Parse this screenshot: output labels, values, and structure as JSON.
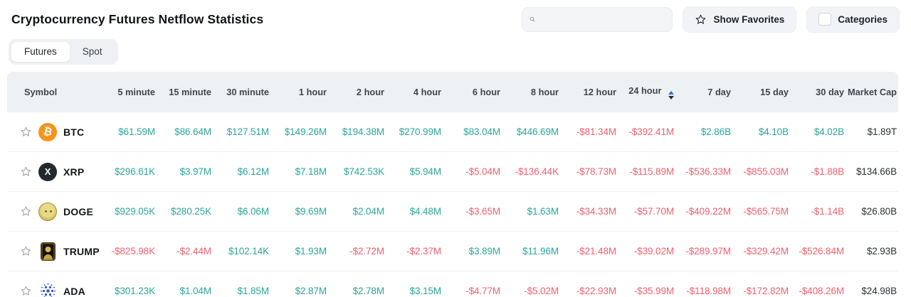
{
  "header": {
    "title": "Cryptocurrency Futures Netflow Statistics",
    "show_favorites_label": "Show Favorites",
    "categories_label": "Categories"
  },
  "search": {
    "value": "",
    "placeholder": ""
  },
  "tabs": [
    {
      "label": "Futures",
      "active": true
    },
    {
      "label": "Spot",
      "active": false
    }
  ],
  "table": {
    "columns": [
      "Symbol",
      "5 minute",
      "15 minute",
      "30 minute",
      "1 hour",
      "2 hour",
      "4 hour",
      "6 hour",
      "8 hour",
      "12 hour",
      "24 hour",
      "7 day",
      "15 day",
      "30 day",
      "Market Cap"
    ],
    "sorted_column": "24 hour",
    "rows": [
      {
        "symbol": "BTC",
        "icon": "btc-icon",
        "values": [
          "$61.59M",
          "$86.64M",
          "$127.51M",
          "$149.26M",
          "$194.38M",
          "$270.99M",
          "$83.04M",
          "$446.69M",
          "-$81.34M",
          "-$392.41M",
          "$2.86B",
          "$4.10B",
          "$4.02B"
        ],
        "market_cap": "$1.89T"
      },
      {
        "symbol": "XRP",
        "icon": "xrp-icon",
        "values": [
          "$296.61K",
          "$3.97M",
          "$6.12M",
          "$7.18M",
          "$742.53K",
          "$5.94M",
          "-$5.04M",
          "-$136.44K",
          "-$78.73M",
          "-$115.89M",
          "-$536.33M",
          "-$855.03M",
          "-$1.88B"
        ],
        "market_cap": "$134.66B"
      },
      {
        "symbol": "DOGE",
        "icon": "doge-icon",
        "values": [
          "$929.05K",
          "$280.25K",
          "$6.06M",
          "$9.69M",
          "$2.04M",
          "$4.48M",
          "-$3.65M",
          "$1.63M",
          "-$34.33M",
          "-$57.70M",
          "-$409.22M",
          "-$565.75M",
          "-$1.14B"
        ],
        "market_cap": "$26.80B"
      },
      {
        "symbol": "TRUMP",
        "icon": "trump-icon",
        "values": [
          "-$825.98K",
          "-$2.44M",
          "$102.14K",
          "$1.93M",
          "-$2.72M",
          "-$2.37M",
          "$3.89M",
          "$11.96M",
          "-$21.48M",
          "-$39.02M",
          "-$289.97M",
          "-$329.42M",
          "-$526.84M"
        ],
        "market_cap": "$2.93B"
      },
      {
        "symbol": "ADA",
        "icon": "ada-icon",
        "values": [
          "$301.23K",
          "$1.04M",
          "$1.85M",
          "$2.87M",
          "$2.78M",
          "$3.15M",
          "-$4.77M",
          "-$5.02M",
          "-$22.93M",
          "-$35.99M",
          "-$118.98M",
          "-$172.82M",
          "-$408.26M"
        ],
        "market_cap": "$24.98B"
      }
    ]
  },
  "colors": {
    "positive": "#2aa79b",
    "negative": "#f4606c",
    "bitcoin_orange": "#f7931a",
    "sort_arrow_active": "#2e6be5",
    "header_background": "#eef1f3"
  }
}
